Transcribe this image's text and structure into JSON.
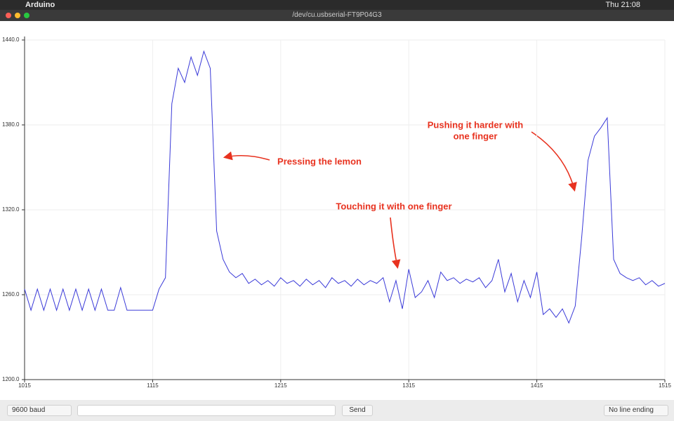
{
  "menubar": {
    "app": "Arduino",
    "clock": "Thu 21:08"
  },
  "window": {
    "title": "/dev/cu.usbserial-FT9P04G3"
  },
  "chart_data": {
    "type": "line",
    "x": [
      1015,
      1020,
      1025,
      1030,
      1035,
      1040,
      1045,
      1050,
      1055,
      1060,
      1065,
      1070,
      1075,
      1080,
      1085,
      1090,
      1095,
      1100,
      1105,
      1110,
      1115,
      1120,
      1125,
      1130,
      1135,
      1140,
      1145,
      1150,
      1155,
      1160,
      1165,
      1170,
      1175,
      1180,
      1185,
      1190,
      1195,
      1200,
      1205,
      1210,
      1215,
      1220,
      1225,
      1230,
      1235,
      1240,
      1245,
      1250,
      1255,
      1260,
      1265,
      1270,
      1275,
      1280,
      1285,
      1290,
      1295,
      1300,
      1305,
      1310,
      1315,
      1320,
      1325,
      1330,
      1335,
      1340,
      1345,
      1350,
      1355,
      1360,
      1365,
      1370,
      1375,
      1380,
      1385,
      1390,
      1395,
      1400,
      1405,
      1410,
      1415,
      1420,
      1425,
      1430,
      1435,
      1440,
      1445,
      1450,
      1455,
      1460,
      1465,
      1470,
      1475,
      1480,
      1485,
      1490,
      1495,
      1500,
      1505,
      1510,
      1515
    ],
    "series": [
      {
        "color": "#3a3ad8",
        "values": [
          1264,
          1249,
          1264,
          1249,
          1264,
          1249,
          1264,
          1249,
          1264,
          1249,
          1264,
          1249,
          1264,
          1249,
          1249,
          1265,
          1249,
          1249,
          1249,
          1249,
          1249,
          1264,
          1272,
          1395,
          1420,
          1410,
          1428,
          1415,
          1432,
          1420,
          1305,
          1285,
          1276,
          1272,
          1275,
          1268,
          1271,
          1267,
          1270,
          1266,
          1272,
          1268,
          1270,
          1266,
          1271,
          1267,
          1270,
          1265,
          1272,
          1268,
          1270,
          1266,
          1271,
          1267,
          1270,
          1268,
          1272,
          1255,
          1270,
          1250,
          1278,
          1258,
          1262,
          1270,
          1258,
          1276,
          1270,
          1272,
          1268,
          1271,
          1269,
          1272,
          1265,
          1270,
          1285,
          1262,
          1275,
          1255,
          1270,
          1258,
          1276,
          1246,
          1250,
          1244,
          1250,
          1240,
          1252,
          1300,
          1355,
          1372,
          1378,
          1385,
          1285,
          1275,
          1272,
          1270,
          1272,
          1267,
          1270,
          1266,
          1268
        ]
      }
    ],
    "xlim": [
      1015,
      1515
    ],
    "ylim": [
      1200,
      1440
    ],
    "xticks": [
      1015,
      1115,
      1215,
      1315,
      1415,
      1515
    ],
    "yticks": [
      {
        "value": 1200,
        "label": "1200.0"
      },
      {
        "value": 1260,
        "label": "1260.0"
      },
      {
        "value": 1320,
        "label": "1320.0"
      },
      {
        "value": 1380,
        "label": "1380.0"
      },
      {
        "value": 1440,
        "label": "1440.0"
      }
    ],
    "grid": true,
    "annotations": [
      {
        "lines": [
          "Pressing the lemon"
        ]
      },
      {
        "lines": [
          "Touching it with one finger"
        ]
      },
      {
        "lines": [
          "Pushing it harder with",
          "one finger"
        ]
      }
    ]
  },
  "footer": {
    "baud": "9600 baud",
    "send": "Send",
    "line_ending": "No line ending"
  }
}
